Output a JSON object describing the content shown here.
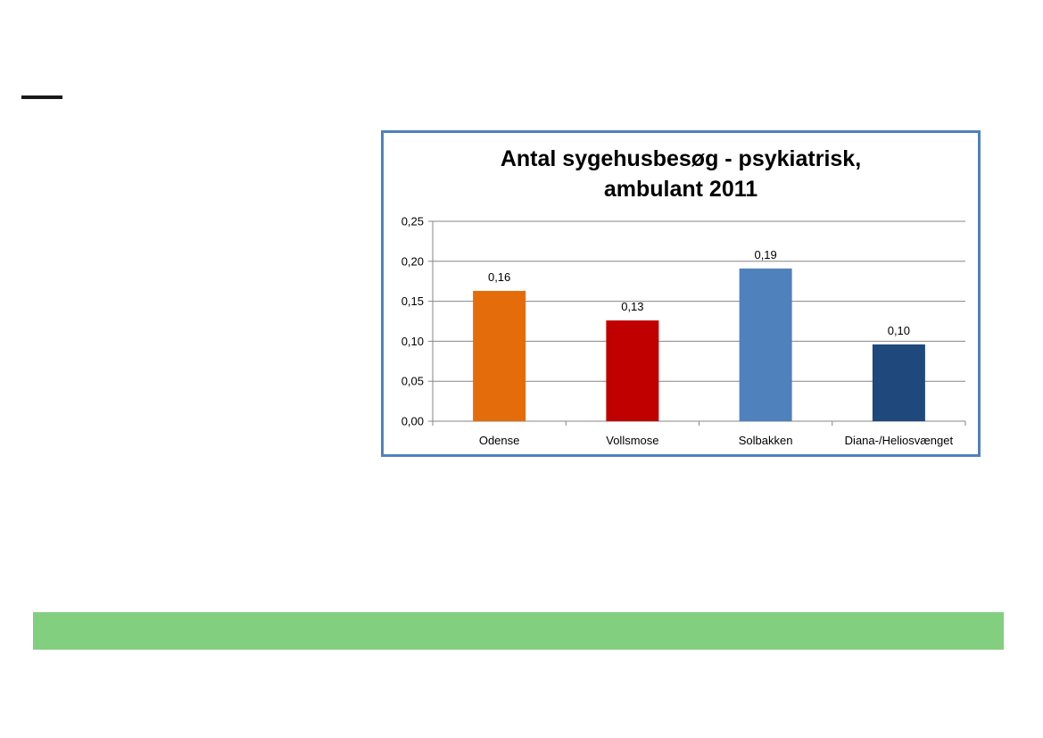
{
  "chart_data": {
    "type": "bar",
    "title_lines": [
      "Antal sygehusbesøg - psykiatrisk,",
      "ambulant 2011"
    ],
    "categories": [
      "Odense",
      "Vollsmose",
      "Solbakken",
      "Diana-/Heliosvænget"
    ],
    "values": [
      0.163,
      0.126,
      0.191,
      0.096
    ],
    "data_labels": [
      "0,16",
      "0,13",
      "0,19",
      "0,10"
    ],
    "colors": [
      "#e46c0a",
      "#c00000",
      "#4f81bd",
      "#1f497d"
    ],
    "y_ticks": [
      0,
      0.05,
      0.1,
      0.15,
      0.2,
      0.25
    ],
    "y_tick_labels": [
      "0,00",
      "0,05",
      "0,10",
      "0,15",
      "0,20",
      "0,25"
    ],
    "ylim": [
      0,
      0.25
    ],
    "grid": true,
    "legend": "none"
  }
}
